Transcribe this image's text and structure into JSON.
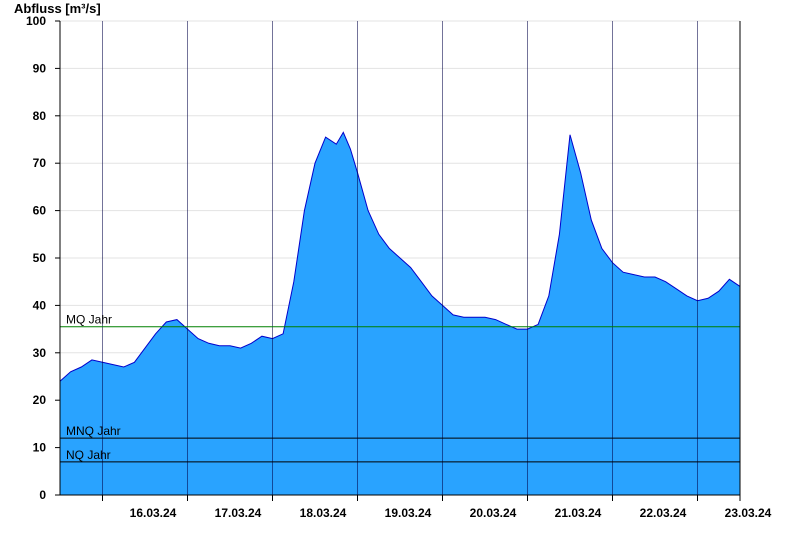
{
  "chart_data": {
    "type": "area",
    "ylabel": "Abfluss [m³/s]",
    "xlabel": "",
    "title": "",
    "ylim": [
      0,
      100
    ],
    "yticks": [
      0,
      10,
      20,
      30,
      40,
      50,
      60,
      70,
      80,
      90,
      100
    ],
    "xlim": [
      "15.03.24 12:00",
      "23.03.24 12:00"
    ],
    "x_ticks": [
      "16.03.24",
      "17.03.24",
      "18.03.24",
      "19.03.24",
      "20.03.24",
      "21.03.24",
      "22.03.24",
      "23.03.24"
    ],
    "grid": true,
    "area_color": "#29A3FF",
    "series": [
      {
        "x": [
          "15.03.24 12:00",
          "15.03.24 15:00",
          "15.03.24 18:00",
          "15.03.24 21:00",
          "16.03.24 00:00",
          "16.03.24 03:00",
          "16.03.24 06:00",
          "16.03.24 09:00",
          "16.03.24 12:00",
          "16.03.24 15:00",
          "16.03.24 18:00",
          "16.03.24 21:00",
          "17.03.24 00:00",
          "17.03.24 03:00",
          "17.03.24 06:00",
          "17.03.24 09:00",
          "17.03.24 12:00",
          "17.03.24 15:00",
          "17.03.24 18:00",
          "17.03.24 21:00",
          "18.03.24 00:00",
          "18.03.24 03:00",
          "18.03.24 06:00",
          "18.03.24 09:00",
          "18.03.24 12:00",
          "18.03.24 15:00",
          "18.03.24 18:00",
          "18.03.24 20:00",
          "18.03.24 22:00",
          "19.03.24 00:00",
          "19.03.24 03:00",
          "19.03.24 06:00",
          "19.03.24 09:00",
          "19.03.24 12:00",
          "19.03.24 15:00",
          "19.03.24 18:00",
          "19.03.24 21:00",
          "20.03.24 00:00",
          "20.03.24 03:00",
          "20.03.24 06:00",
          "20.03.24 09:00",
          "20.03.24 12:00",
          "20.03.24 15:00",
          "20.03.24 18:00",
          "20.03.24 21:00",
          "21.03.24 00:00",
          "21.03.24 03:00",
          "21.03.24 06:00",
          "21.03.24 09:00",
          "21.03.24 12:00",
          "21.03.24 15:00",
          "21.03.24 18:00",
          "21.03.24 21:00",
          "22.03.24 00:00",
          "22.03.24 03:00",
          "22.03.24 06:00",
          "22.03.24 09:00",
          "22.03.24 12:00",
          "22.03.24 15:00",
          "22.03.24 18:00",
          "22.03.24 21:00",
          "23.03.24 00:00",
          "23.03.24 03:00",
          "23.03.24 06:00",
          "23.03.24 09:00",
          "23.03.24 12:00"
        ],
        "values": [
          24,
          26,
          27,
          28.5,
          28,
          27.5,
          27,
          28,
          31,
          34,
          36.5,
          37,
          35,
          33,
          32,
          31.5,
          31.5,
          31,
          32,
          33.5,
          33,
          34,
          45,
          60,
          70,
          75.5,
          74,
          76.5,
          73,
          68,
          60,
          55,
          52,
          50,
          48,
          45,
          42,
          40,
          38,
          37.5,
          37.5,
          37.5,
          37,
          36,
          35,
          35,
          36,
          42,
          55,
          76,
          68,
          58,
          52,
          49,
          47,
          46.5,
          46,
          46,
          45,
          43.5,
          42,
          41,
          41.5,
          43,
          45.5,
          44
        ]
      }
    ],
    "reference_lines": [
      {
        "label": "MQ Jahr",
        "value": 35.5,
        "color": "#008000"
      },
      {
        "label": "MNQ Jahr",
        "value": 12,
        "color": "#000000"
      },
      {
        "label": "NQ Jahr",
        "value": 7,
        "color": "#000000"
      }
    ]
  }
}
